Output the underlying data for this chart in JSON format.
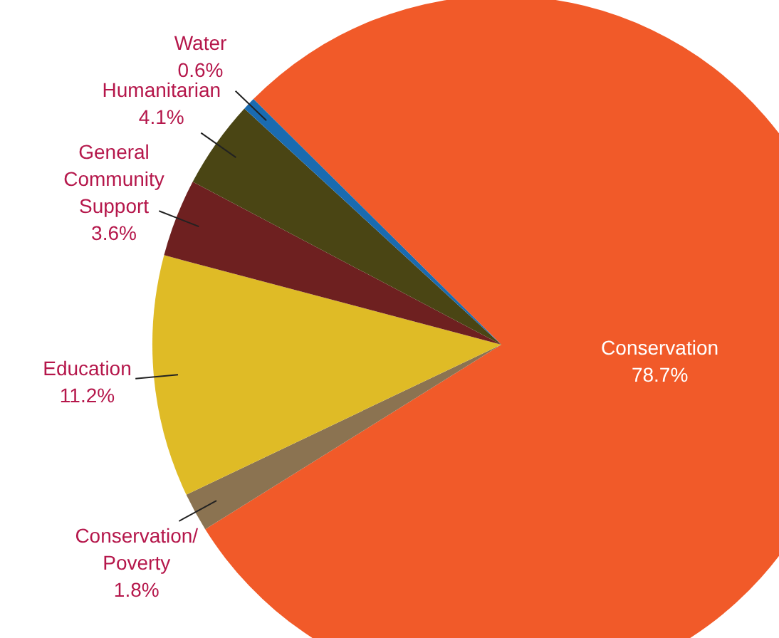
{
  "chart_data": {
    "type": "pie",
    "categories": [
      "Conservation",
      "Conservation/Poverty",
      "Education",
      "General Community Support",
      "Humanitarian",
      "Water"
    ],
    "values": [
      78.7,
      1.8,
      11.2,
      3.6,
      4.1,
      0.6
    ],
    "colors": [
      "#f15a29",
      "#8b7351",
      "#dfbb26",
      "#6e2020",
      "#4a4514",
      "#1a6bb0"
    ],
    "value_labels": [
      "78.7%",
      "1.8%",
      "11.2%",
      "3.6%",
      "4.1%",
      "0.6%"
    ]
  }
}
